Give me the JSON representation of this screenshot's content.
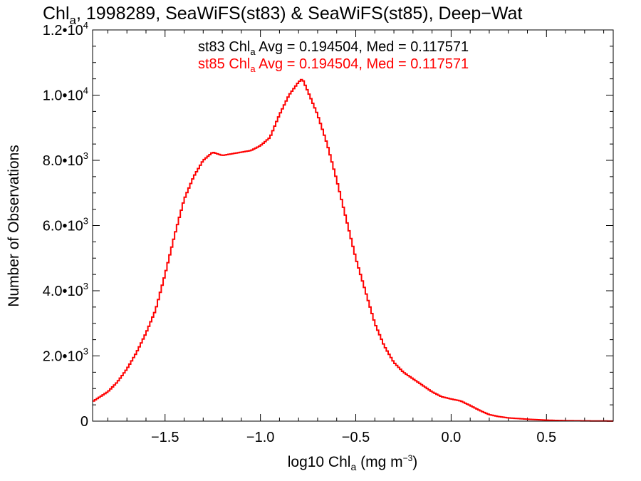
{
  "chart_data": {
    "type": "line",
    "title_parts": {
      "prefix": "Chl",
      "sub": "a",
      "rest": ", 1998289, SeaWiFS(st83) & SeaWiFS(st85), Deep−Wat"
    },
    "xlabel_parts": {
      "prefix": "log10 Chl",
      "sub": "a",
      "mid": " (mg m",
      "sup": "−3",
      "end": ")"
    },
    "ylabel": "Number of Observations",
    "xlim": [
      -1.88,
      0.85
    ],
    "ylim": [
      0,
      12000
    ],
    "x_ticks": [
      {
        "value": -1.5,
        "label": "−1.5"
      },
      {
        "value": -1.0,
        "label": "−1.0"
      },
      {
        "value": -0.5,
        "label": "−0.5"
      },
      {
        "value": 0.0,
        "label": "0.0"
      },
      {
        "value": 0.5,
        "label": "0.5"
      }
    ],
    "y_ticks": [
      {
        "value": 0,
        "mant": "0",
        "exp": ""
      },
      {
        "value": 2000,
        "mant": "2.0•10",
        "exp": "3"
      },
      {
        "value": 4000,
        "mant": "4.0•10",
        "exp": "3"
      },
      {
        "value": 6000,
        "mant": "6.0•10",
        "exp": "3"
      },
      {
        "value": 8000,
        "mant": "8.0•10",
        "exp": "3"
      },
      {
        "value": 10000,
        "mant": "1.0•10",
        "exp": "4"
      },
      {
        "value": 12000,
        "mant": "1.2•10",
        "exp": "4"
      }
    ],
    "annotations": [
      {
        "station": "st83",
        "prefix": "st83 Chl",
        "sub": "a",
        "rest": " Avg = 0.194504, Med = 0.117571",
        "color": "#000000"
      },
      {
        "station": "st85",
        "prefix": "st85 Chl",
        "sub": "a",
        "rest": " Avg = 0.194504, Med = 0.117571",
        "color": "#ff0000"
      }
    ],
    "series": [
      {
        "name": "st85",
        "color": "#ff0000",
        "x": [
          -1.88,
          -1.8,
          -1.75,
          -1.7,
          -1.65,
          -1.6,
          -1.55,
          -1.5,
          -1.45,
          -1.4,
          -1.35,
          -1.3,
          -1.25,
          -1.2,
          -1.15,
          -1.1,
          -1.05,
          -1.0,
          -0.95,
          -0.9,
          -0.85,
          -0.8,
          -0.78,
          -0.75,
          -0.7,
          -0.65,
          -0.6,
          -0.55,
          -0.5,
          -0.45,
          -0.4,
          -0.35,
          -0.3,
          -0.25,
          -0.2,
          -0.15,
          -0.1,
          -0.05,
          0.0,
          0.05,
          0.1,
          0.15,
          0.2,
          0.25,
          0.3,
          0.4,
          0.5,
          0.6,
          0.7,
          0.85
        ],
        "y": [
          600,
          900,
          1200,
          1600,
          2100,
          2700,
          3400,
          4500,
          5700,
          6800,
          7500,
          8000,
          8250,
          8150,
          8200,
          8250,
          8300,
          8450,
          8700,
          9400,
          10000,
          10400,
          10500,
          10100,
          9400,
          8500,
          7400,
          6200,
          5000,
          4000,
          3000,
          2300,
          1800,
          1500,
          1300,
          1100,
          900,
          750,
          680,
          620,
          480,
          330,
          200,
          140,
          100,
          60,
          30,
          15,
          8,
          3
        ]
      }
    ]
  }
}
